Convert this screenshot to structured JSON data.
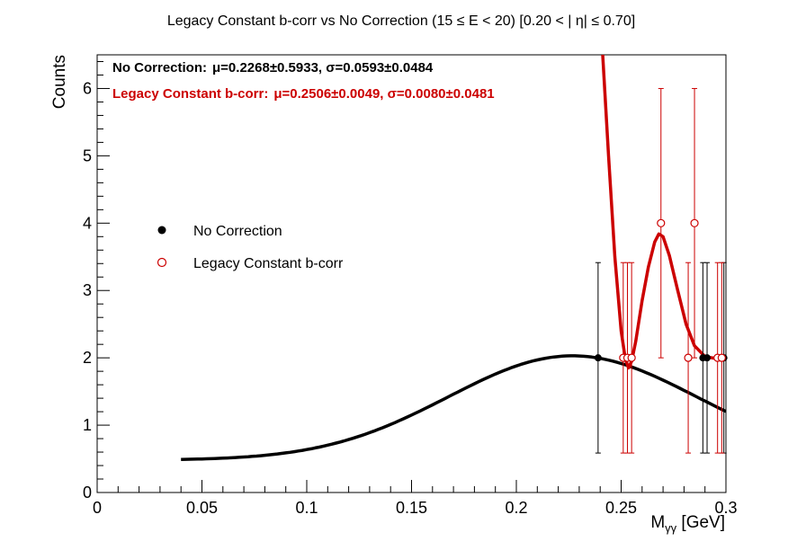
{
  "chart_data": {
    "type": "scatter",
    "title": "Legacy Constant b-corr vs No Correction   (15     ≤ E < 20)   [0.20 <  |  η| ≤ 0.70]",
    "xlabel": "Mγγ [GeV]",
    "xlabel_main": "M",
    "xlabel_sub": "γγ",
    "xlabel_unit": " [GeV]",
    "ylabel": "Counts",
    "xlim": [
      0,
      0.3
    ],
    "ylim": [
      0,
      6.5
    ],
    "x_ticks": [
      0,
      0.05,
      0.1,
      0.15,
      0.2,
      0.25,
      0.3
    ],
    "x_tick_labels": [
      "0",
      "0.05",
      "0.1",
      "0.15",
      "0.2",
      "0.25",
      "0.3"
    ],
    "y_ticks": [
      0,
      1,
      2,
      3,
      4,
      5,
      6
    ],
    "y_tick_labels": [
      "0",
      "1",
      "2",
      "3",
      "4",
      "5",
      "6"
    ],
    "grid": false,
    "legend_position": "middle-left",
    "stats": [
      {
        "label": "No Correction:",
        "text": "μ=0.2268±0.5933,  σ=0.0593±0.0484",
        "color": "#000000"
      },
      {
        "label": "Legacy Constant b-corr:",
        "text": "μ=0.2506±0.0049,  σ=0.0080±0.0481",
        "color": "#cc0000"
      }
    ],
    "series": [
      {
        "name": "No Correction",
        "color": "#000000",
        "marker": "filled-circle",
        "points": [
          {
            "x": 0.239,
            "y": 2,
            "err": 1.414
          },
          {
            "x": 0.289,
            "y": 2,
            "err": 1.414
          },
          {
            "x": 0.291,
            "y": 2,
            "err": 1.414
          },
          {
            "x": 0.299,
            "y": 2,
            "err": 1.414
          }
        ],
        "fit": {
          "type": "gaussian+const",
          "mean": 0.2268,
          "sigma": 0.0593,
          "amp": 1.55,
          "const": 0.48,
          "x_range": [
            0.04,
            0.3
          ]
        }
      },
      {
        "name": "Legacy Constant b-corr",
        "color": "#cc0000",
        "marker": "open-circle",
        "points": [
          {
            "x": 0.251,
            "y": 2,
            "err": 1.414
          },
          {
            "x": 0.253,
            "y": 2,
            "err": 1.414
          },
          {
            "x": 0.255,
            "y": 2,
            "err": 1.414
          },
          {
            "x": 0.269,
            "y": 4,
            "err": 2.0
          },
          {
            "x": 0.282,
            "y": 2,
            "err": 1.414
          },
          {
            "x": 0.285,
            "y": 4,
            "err": 2.0
          },
          {
            "x": 0.296,
            "y": 2,
            "err": 1.414
          },
          {
            "x": 0.298,
            "y": 2,
            "err": 1.414
          }
        ],
        "fit": {
          "type": "curve",
          "x_range": [
            0.241,
            0.3
          ],
          "curve": [
            [
              0.2412,
              6.5
            ],
            [
              0.244,
              5.0
            ],
            [
              0.247,
              3.5
            ],
            [
              0.25,
              2.4
            ],
            [
              0.252,
              1.98
            ],
            [
              0.2535,
              1.85
            ],
            [
              0.255,
              1.95
            ],
            [
              0.257,
              2.25
            ],
            [
              0.26,
              2.85
            ],
            [
              0.263,
              3.35
            ],
            [
              0.266,
              3.72
            ],
            [
              0.268,
              3.84
            ],
            [
              0.27,
              3.8
            ],
            [
              0.273,
              3.52
            ],
            [
              0.277,
              3.0
            ],
            [
              0.281,
              2.5
            ],
            [
              0.285,
              2.18
            ],
            [
              0.29,
              2.02
            ],
            [
              0.295,
              1.99
            ],
            [
              0.3,
              1.98
            ]
          ]
        }
      }
    ]
  }
}
